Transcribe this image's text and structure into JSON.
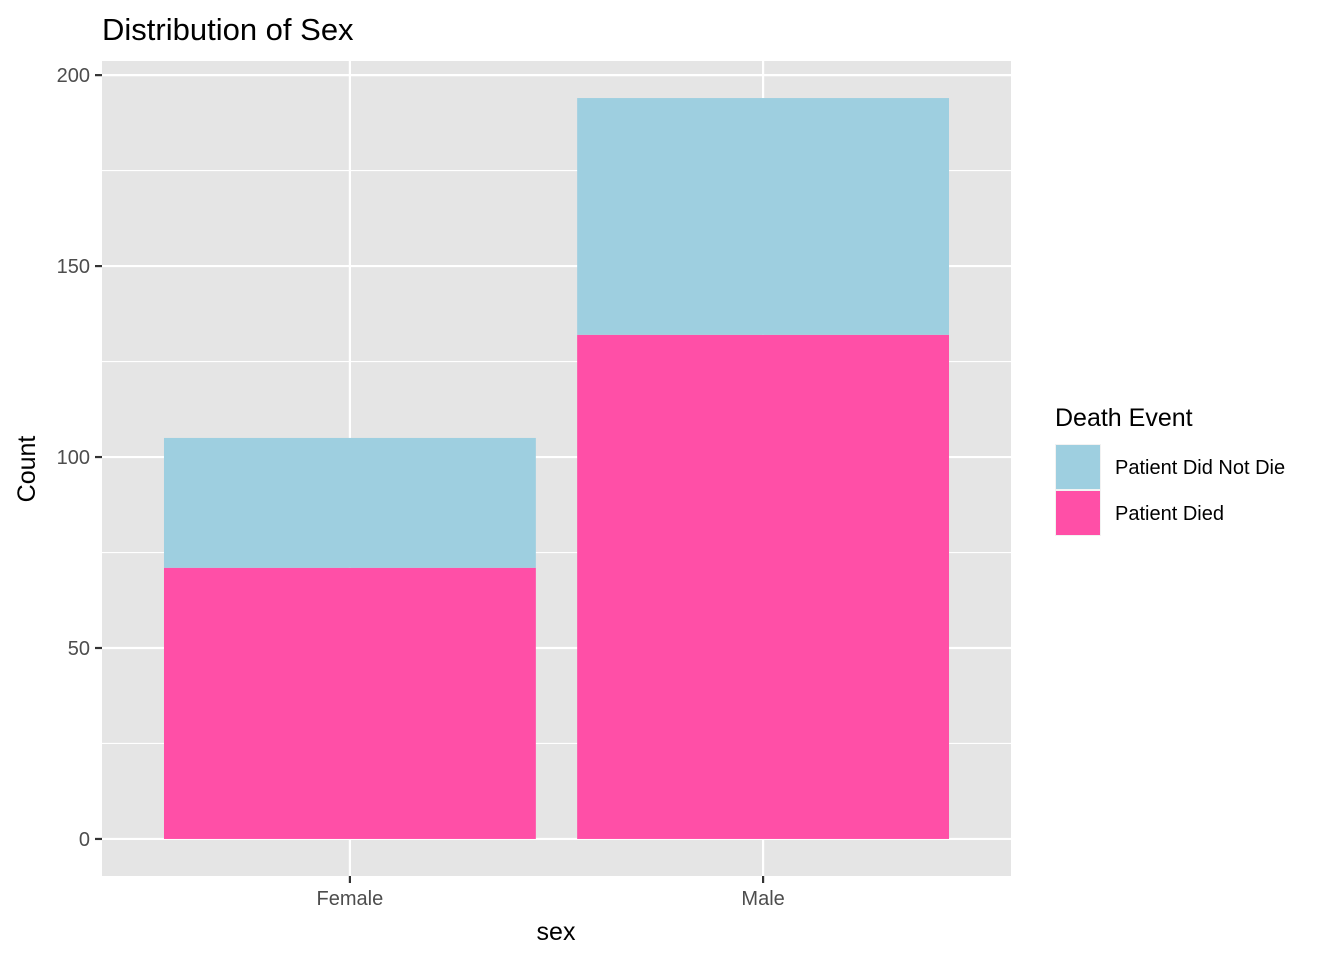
{
  "chart_data": {
    "type": "bar",
    "stacked": true,
    "title": "Distribution of Sex",
    "xlabel": "sex",
    "ylabel": "Count",
    "categories": [
      "Female",
      "Male"
    ],
    "series": [
      {
        "name": "Patient Died",
        "values": [
          71,
          132
        ],
        "color": "#FF4FA7"
      },
      {
        "name": "Patient Did Not Die",
        "values": [
          34,
          62
        ],
        "color": "#9ECFE0"
      }
    ],
    "ylim": [
      -9.7,
      203.7
    ],
    "yticks": [
      0,
      50,
      100,
      150,
      200
    ],
    "grid": true,
    "panel_background": "#E5E5E5",
    "legend": {
      "title": "Death Event",
      "position": "right",
      "entries": [
        "Patient Did Not Die",
        "Patient Died"
      ]
    }
  }
}
